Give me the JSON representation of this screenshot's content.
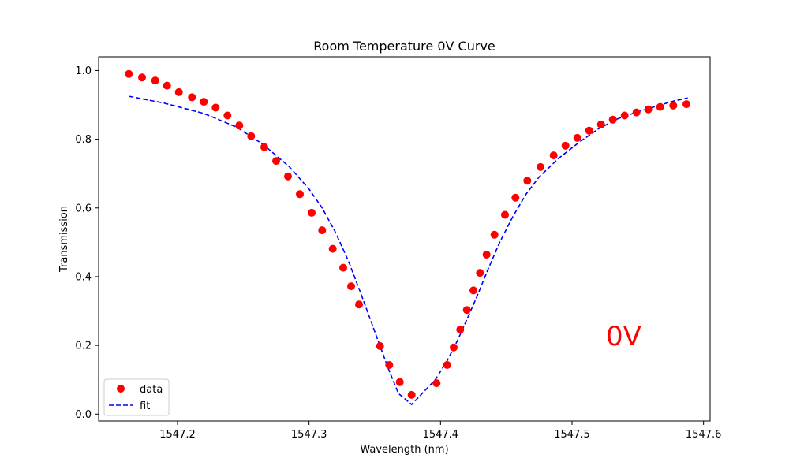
{
  "chart_data": {
    "type": "scatter",
    "title": "Room Temperature 0V Curve",
    "xlabel": "Wavelength (nm)",
    "ylabel": "Transmission",
    "xlim": [
      1547.14,
      1547.605
    ],
    "ylim": [
      -0.02,
      1.04
    ],
    "xticks": [
      "1547.2",
      "1547.3",
      "1547.4",
      "1547.5",
      "1547.6"
    ],
    "xtick_values": [
      1547.2,
      1547.3,
      1547.4,
      1547.5,
      1547.6
    ],
    "yticks": [
      "0.0",
      "0.2",
      "0.4",
      "0.6",
      "0.8",
      "1.0"
    ],
    "ytick_values": [
      0.0,
      0.2,
      0.4,
      0.6,
      0.8,
      1.0
    ],
    "grid": false,
    "legend": "lower-left",
    "annotation": {
      "text": "0V",
      "x": 1547.53,
      "y": 0.21,
      "color": "#ff0000"
    },
    "series": [
      {
        "name": "data",
        "style": "markers",
        "color": "#ff0000",
        "x": [
          1547.163,
          1547.173,
          1547.183,
          1547.192,
          1547.201,
          1547.211,
          1547.22,
          1547.229,
          1547.238,
          1547.247,
          1547.256,
          1547.266,
          1547.275,
          1547.284,
          1547.293,
          1547.302,
          1547.31,
          1547.318,
          1547.326,
          1547.332,
          1547.338,
          1547.354,
          1547.361,
          1547.369,
          1547.378,
          1547.397,
          1547.405,
          1547.41,
          1547.415,
          1547.42,
          1547.425,
          1547.43,
          1547.435,
          1547.441,
          1547.449,
          1547.457,
          1547.466,
          1547.476,
          1547.486,
          1547.495,
          1547.504,
          1547.513,
          1547.522,
          1547.531,
          1547.54,
          1547.549,
          1547.558,
          1547.567,
          1547.577,
          1547.587
        ],
        "y": [
          0.99,
          0.98,
          0.971,
          0.956,
          0.937,
          0.922,
          0.909,
          0.892,
          0.869,
          0.84,
          0.809,
          0.777,
          0.737,
          0.692,
          0.64,
          0.586,
          0.535,
          0.481,
          0.426,
          0.372,
          0.319,
          0.198,
          0.143,
          0.093,
          0.056,
          0.09,
          0.143,
          0.194,
          0.246,
          0.303,
          0.36,
          0.411,
          0.464,
          0.522,
          0.58,
          0.63,
          0.679,
          0.719,
          0.753,
          0.781,
          0.804,
          0.825,
          0.843,
          0.857,
          0.869,
          0.878,
          0.887,
          0.894,
          0.898,
          0.902
        ]
      },
      {
        "name": "fit",
        "style": "dashed-line",
        "color": "#0000ff",
        "x": [
          1547.163,
          1547.19,
          1547.22,
          1547.245,
          1547.265,
          1547.285,
          1547.3,
          1547.31,
          1547.32,
          1547.33,
          1547.34,
          1547.35,
          1547.36,
          1547.368,
          1547.378,
          1547.396,
          1547.405,
          1547.413,
          1547.42,
          1547.428,
          1547.436,
          1547.445,
          1547.455,
          1547.465,
          1547.475,
          1547.49,
          1547.505,
          1547.52,
          1547.535,
          1547.55,
          1547.565,
          1547.578,
          1547.588
        ],
        "y": [
          0.925,
          0.905,
          0.875,
          0.835,
          0.785,
          0.72,
          0.655,
          0.6,
          0.53,
          0.445,
          0.345,
          0.24,
          0.135,
          0.06,
          0.028,
          0.1,
          0.155,
          0.215,
          0.275,
          0.345,
          0.42,
          0.5,
          0.575,
          0.64,
          0.69,
          0.745,
          0.79,
          0.83,
          0.86,
          0.88,
          0.897,
          0.912,
          0.92
        ]
      }
    ]
  }
}
